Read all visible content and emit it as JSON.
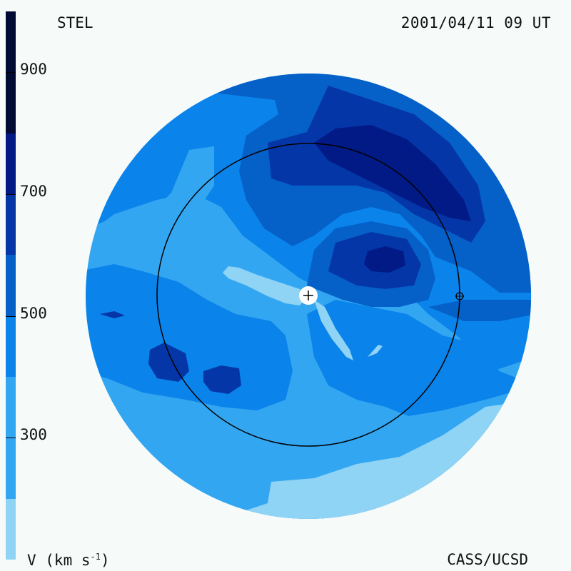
{
  "header": {
    "observatory": "STEL",
    "timestamp": "2001/04/11 09 UT"
  },
  "footer": {
    "unit_label": "V (km s",
    "unit_exponent": "-1",
    "unit_close": ")",
    "credit": "CASS/UCSD"
  },
  "colorbar": {
    "ticks": [
      "900",
      "700",
      "500",
      "300"
    ],
    "tick_values": [
      900,
      700,
      500,
      300
    ],
    "range": [
      100,
      1000
    ],
    "bands": [
      {
        "from": 100,
        "to": 200,
        "color": "#8fd3f5"
      },
      {
        "from": 200,
        "to": 400,
        "color": "#33a6f2"
      },
      {
        "from": 400,
        "to": 500,
        "color": "#0a83ea"
      },
      {
        "from": 500,
        "to": 600,
        "color": "#0560c8"
      },
      {
        "from": 600,
        "to": 700,
        "color": "#0436a8"
      },
      {
        "from": 700,
        "to": 800,
        "color": "#021a86"
      },
      {
        "from": 800,
        "to": 1000,
        "color": "#000a33"
      }
    ]
  },
  "colors": {
    "background": "#f6fbfa",
    "v_lowest": "#8fd3f5",
    "v_low": "#33a6f2",
    "v_mid": "#0a83ea",
    "v_midhigh": "#0560c8",
    "v_high": "#0436a8",
    "v_higher": "#021a86",
    "outline": "#000000"
  },
  "markers": {
    "sun": "sun-plus-marker",
    "earth": "earth-circle-marker"
  }
}
